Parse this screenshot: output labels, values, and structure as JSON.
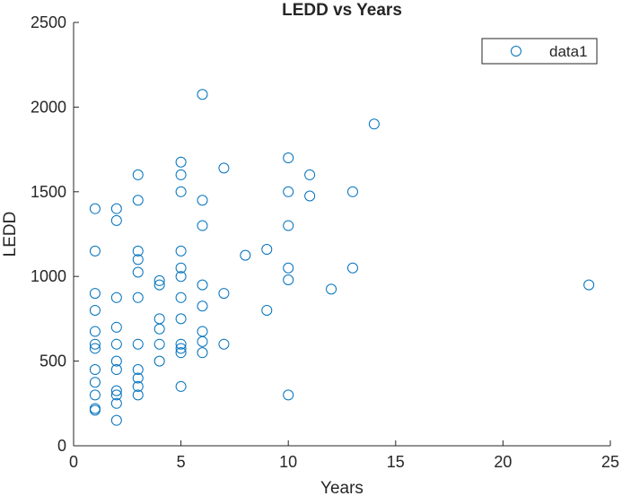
{
  "chart_data": {
    "type": "scatter",
    "title": "LEDD vs Years",
    "xlabel": "Years",
    "ylabel": "LEDD",
    "xlim": [
      0,
      25
    ],
    "ylim": [
      0,
      2500
    ],
    "xticks": [
      0,
      5,
      10,
      15,
      20,
      25
    ],
    "yticks": [
      0,
      500,
      1000,
      1500,
      2000,
      2500
    ],
    "legend_position": "top-right",
    "series": [
      {
        "name": "data1",
        "color": "#0072BD",
        "marker": "open-circle",
        "points": [
          [
            1,
            1400
          ],
          [
            1,
            1150
          ],
          [
            1,
            900
          ],
          [
            1,
            800
          ],
          [
            1,
            675
          ],
          [
            1,
            600
          ],
          [
            1,
            575
          ],
          [
            1,
            450
          ],
          [
            1,
            375
          ],
          [
            1,
            300
          ],
          [
            1,
            220
          ],
          [
            1,
            210
          ],
          [
            2,
            1400
          ],
          [
            2,
            1330
          ],
          [
            2,
            875
          ],
          [
            2,
            700
          ],
          [
            2,
            600
          ],
          [
            2,
            500
          ],
          [
            2,
            450
          ],
          [
            2,
            325
          ],
          [
            2,
            300
          ],
          [
            2,
            250
          ],
          [
            2,
            150
          ],
          [
            3,
            1600
          ],
          [
            3,
            1450
          ],
          [
            3,
            1150
          ],
          [
            3,
            1100
          ],
          [
            3,
            1025
          ],
          [
            3,
            875
          ],
          [
            3,
            600
          ],
          [
            3,
            450
          ],
          [
            3,
            400
          ],
          [
            3,
            350
          ],
          [
            3,
            300
          ],
          [
            4,
            975
          ],
          [
            4,
            950
          ],
          [
            4,
            750
          ],
          [
            4,
            690
          ],
          [
            4,
            600
          ],
          [
            4,
            500
          ],
          [
            5,
            1675
          ],
          [
            5,
            1600
          ],
          [
            5,
            1500
          ],
          [
            5,
            1150
          ],
          [
            5,
            1050
          ],
          [
            5,
            1000
          ],
          [
            5,
            875
          ],
          [
            5,
            750
          ],
          [
            5,
            600
          ],
          [
            5,
            575
          ],
          [
            5,
            550
          ],
          [
            5,
            350
          ],
          [
            6,
            2075
          ],
          [
            6,
            1450
          ],
          [
            6,
            1300
          ],
          [
            6,
            950
          ],
          [
            6,
            825
          ],
          [
            6,
            675
          ],
          [
            6,
            615
          ],
          [
            6,
            550
          ],
          [
            7,
            1640
          ],
          [
            7,
            900
          ],
          [
            7,
            600
          ],
          [
            8,
            1125
          ],
          [
            9,
            1160
          ],
          [
            9,
            800
          ],
          [
            10,
            1700
          ],
          [
            10,
            1500
          ],
          [
            10,
            1300
          ],
          [
            10,
            1050
          ],
          [
            10,
            980
          ],
          [
            10,
            300
          ],
          [
            11,
            1600
          ],
          [
            11,
            1475
          ],
          [
            12,
            925
          ],
          [
            13,
            1500
          ],
          [
            13,
            1050
          ],
          [
            14,
            1900
          ],
          [
            24,
            950
          ]
        ]
      }
    ]
  }
}
